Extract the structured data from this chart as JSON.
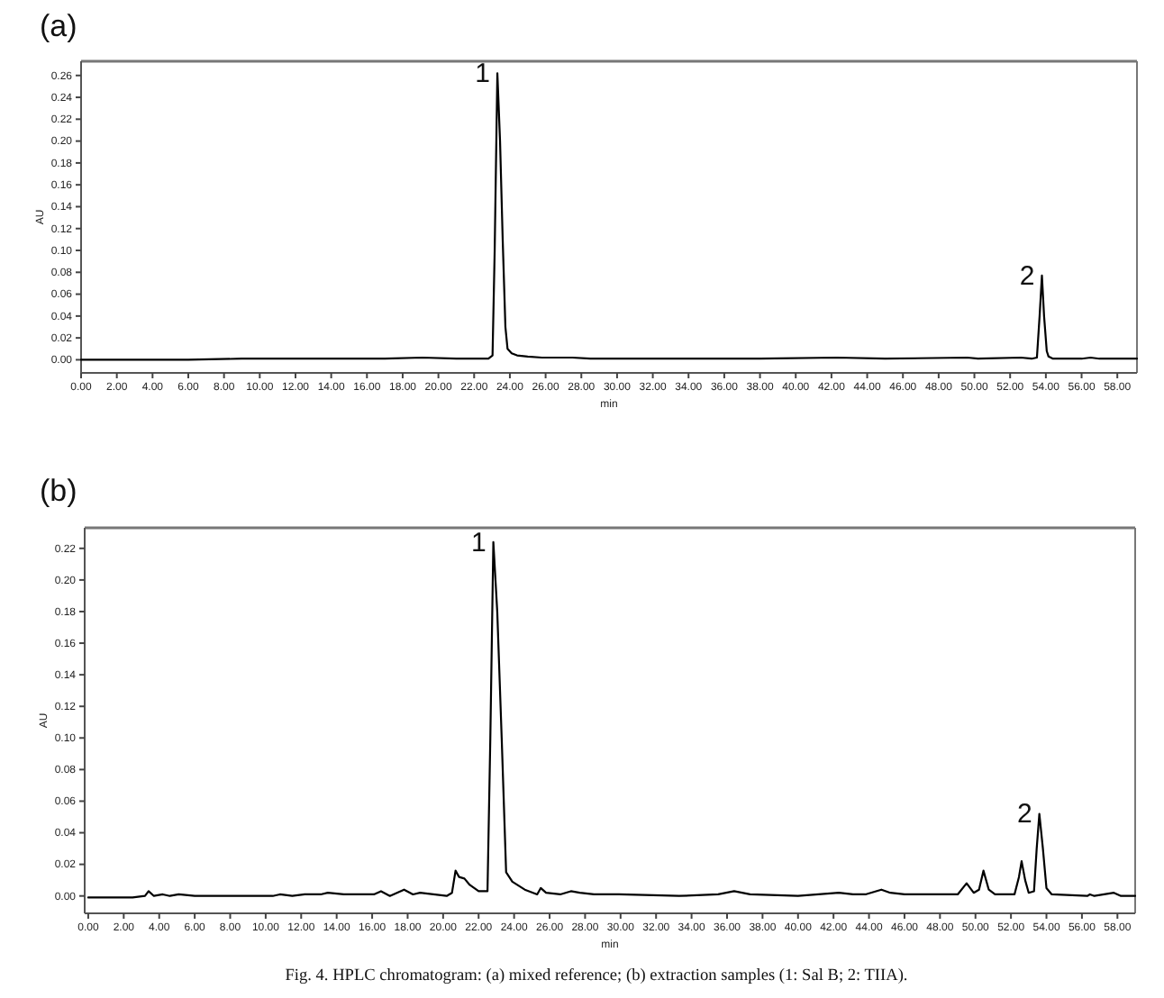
{
  "chart_data": [
    {
      "type": "line",
      "title": "(a)",
      "xlabel": "min",
      "ylabel": "AU",
      "x": [
        0,
        3,
        6,
        9,
        12,
        14,
        17,
        19.1,
        21,
        22.8,
        23.03,
        23.15,
        23.3,
        23.45,
        23.6,
        23.75,
        23.87,
        24.1,
        24.4,
        25,
        25.8,
        27.5,
        28.5,
        30,
        34,
        38,
        42.3,
        45,
        49.6,
        50.2,
        52.6,
        53.2,
        53.5,
        53.65,
        53.78,
        53.9,
        54.05,
        54.15,
        54.4,
        56,
        56.5,
        57,
        59.1
      ],
      "series": [
        {
          "color": "#000000",
          "values": [
            0,
            0,
            0,
            0.001,
            0.001,
            0.001,
            0.001,
            0.002,
            0.001,
            0.001,
            0.004,
            0.1,
            0.262,
            0.2,
            0.109,
            0.03,
            0.01,
            0.006,
            0.004,
            0.003,
            0.002,
            0.002,
            0.001,
            0.001,
            0.001,
            0.001,
            0.002,
            0.001,
            0.002,
            0.001,
            0.002,
            0.001,
            0.002,
            0.04,
            0.077,
            0.04,
            0.008,
            0.003,
            0.001,
            0.001,
            0.002,
            0.001,
            0.001
          ]
        }
      ],
      "xlim": [
        0,
        59.1
      ],
      "ylim": [
        -0.012,
        0.273
      ],
      "xticks": [
        {
          "value": 0,
          "label": "0.00"
        },
        {
          "value": 2,
          "label": "2.00"
        },
        {
          "value": 4,
          "label": "4.00"
        },
        {
          "value": 6,
          "label": "6.00"
        },
        {
          "value": 8,
          "label": "8.00"
        },
        {
          "value": 10,
          "label": "10.00"
        },
        {
          "value": 12,
          "label": "12.00"
        },
        {
          "value": 14,
          "label": "14.00"
        },
        {
          "value": 16,
          "label": "16.00"
        },
        {
          "value": 18,
          "label": "18.00"
        },
        {
          "value": 20,
          "label": "20.00"
        },
        {
          "value": 22,
          "label": "22.00"
        },
        {
          "value": 24,
          "label": "24.00"
        },
        {
          "value": 26,
          "label": "26.00"
        },
        {
          "value": 28,
          "label": "28.00"
        },
        {
          "value": 30,
          "label": "30.00"
        },
        {
          "value": 32,
          "label": "32.00"
        },
        {
          "value": 34,
          "label": "34.00"
        },
        {
          "value": 36,
          "label": "36.00"
        },
        {
          "value": 38,
          "label": "38.00"
        },
        {
          "value": 40,
          "label": "40.00"
        },
        {
          "value": 42,
          "label": "42.00"
        },
        {
          "value": 44,
          "label": "44.00"
        },
        {
          "value": 46,
          "label": "46.00"
        },
        {
          "value": 48,
          "label": "48.00"
        },
        {
          "value": 50,
          "label": "50.00"
        },
        {
          "value": 52,
          "label": "52.00"
        },
        {
          "value": 54,
          "label": "54.00"
        },
        {
          "value": 56,
          "label": "56.00"
        },
        {
          "value": 58,
          "label": "58.00"
        }
      ],
      "yticks": [
        {
          "value": 0,
          "label": "0.00"
        },
        {
          "value": 0.02,
          "label": "0.02"
        },
        {
          "value": 0.04,
          "label": "0.04"
        },
        {
          "value": 0.06,
          "label": "0.06"
        },
        {
          "value": 0.08,
          "label": "0.08"
        },
        {
          "value": 0.1,
          "label": "0.10"
        },
        {
          "value": 0.12,
          "label": "0.12"
        },
        {
          "value": 0.14,
          "label": "0.14"
        },
        {
          "value": 0.16,
          "label": "0.16"
        },
        {
          "value": 0.18,
          "label": "0.18"
        },
        {
          "value": 0.2,
          "label": "0.20"
        },
        {
          "value": 0.22,
          "label": "0.22"
        },
        {
          "value": 0.24,
          "label": "0.24"
        },
        {
          "value": 0.26,
          "label": "0.26"
        }
      ],
      "annotations": [
        {
          "text": "1",
          "x": 23.3,
          "y": 0.262
        },
        {
          "text": "2",
          "x": 53.78,
          "y": 0.077
        }
      ]
    },
    {
      "type": "line",
      "title": "(b)",
      "xlabel": "min",
      "ylabel": "AU",
      "x": [
        0,
        2.5,
        3.2,
        3.4,
        3.7,
        4.2,
        4.6,
        5.1,
        6,
        10.4,
        10.8,
        11.5,
        12.2,
        13.1,
        13.5,
        14.4,
        16.1,
        16.5,
        17,
        17.8,
        18.3,
        18.7,
        20.2,
        20.5,
        20.7,
        20.9,
        21.2,
        21.5,
        22,
        22.5,
        22.66,
        22.83,
        23.05,
        23.3,
        23.55,
        23.9,
        24.6,
        25.3,
        25.5,
        25.8,
        26.6,
        27.2,
        27.7,
        28.5,
        29.9,
        33.3,
        35.5,
        36.4,
        37.3,
        40,
        42.3,
        43.1,
        43.8,
        44.7,
        45.2,
        46,
        49,
        49.5,
        49.9,
        50.2,
        50.45,
        50.75,
        51.1,
        52.2,
        52.45,
        52.6,
        52.8,
        53,
        53.3,
        53.45,
        53.6,
        53.8,
        54,
        54.3,
        56.3,
        56.45,
        56.7,
        57.8,
        58.2,
        59
      ],
      "series": [
        {
          "color": "#000000",
          "values": [
            -0.001,
            -0.001,
            0,
            0.003,
            0,
            0.001,
            0,
            0.001,
            0,
            0,
            0.001,
            0,
            0.001,
            0.001,
            0.002,
            0.001,
            0.001,
            0.003,
            0,
            0.004,
            0.001,
            0.002,
            0,
            0.002,
            0.016,
            0.012,
            0.011,
            0.007,
            0.003,
            0.003,
            0.1,
            0.224,
            0.18,
            0.1,
            0.015,
            0.009,
            0.004,
            0.001,
            0.005,
            0.002,
            0.001,
            0.003,
            0.002,
            0.001,
            0.001,
            0,
            0.001,
            0.003,
            0.001,
            0,
            0.002,
            0.001,
            0.001,
            0.004,
            0.002,
            0.001,
            0.001,
            0.008,
            0.002,
            0.004,
            0.016,
            0.004,
            0.001,
            0.001,
            0.012,
            0.022,
            0.01,
            0.002,
            0.003,
            0.03,
            0.052,
            0.03,
            0.005,
            0.001,
            0,
            0.001,
            0,
            0.002,
            0,
            0
          ]
        }
      ],
      "xlim": [
        -0.2,
        59
      ],
      "ylim": [
        -0.011,
        0.233
      ],
      "xticks": [
        {
          "value": 0,
          "label": "0.00"
        },
        {
          "value": 2,
          "label": "2.00"
        },
        {
          "value": 4,
          "label": "4.00"
        },
        {
          "value": 6,
          "label": "6.00"
        },
        {
          "value": 8,
          "label": "8.00"
        },
        {
          "value": 10,
          "label": "10.00"
        },
        {
          "value": 12,
          "label": "12.00"
        },
        {
          "value": 14,
          "label": "14.00"
        },
        {
          "value": 16,
          "label": "16.00"
        },
        {
          "value": 18,
          "label": "18.00"
        },
        {
          "value": 20,
          "label": "20.00"
        },
        {
          "value": 22,
          "label": "22.00"
        },
        {
          "value": 24,
          "label": "24.00"
        },
        {
          "value": 26,
          "label": "26.00"
        },
        {
          "value": 28,
          "label": "28.00"
        },
        {
          "value": 30,
          "label": "30.00"
        },
        {
          "value": 32,
          "label": "32.00"
        },
        {
          "value": 34,
          "label": "34.00"
        },
        {
          "value": 36,
          "label": "36.00"
        },
        {
          "value": 38,
          "label": "38.00"
        },
        {
          "value": 40,
          "label": "40.00"
        },
        {
          "value": 42,
          "label": "42.00"
        },
        {
          "value": 44,
          "label": "44.00"
        },
        {
          "value": 46,
          "label": "46.00"
        },
        {
          "value": 48,
          "label": "48.00"
        },
        {
          "value": 50,
          "label": "50.00"
        },
        {
          "value": 52,
          "label": "52.00"
        },
        {
          "value": 54,
          "label": "54.00"
        },
        {
          "value": 56,
          "label": "56.00"
        },
        {
          "value": 58,
          "label": "58.00"
        }
      ],
      "yticks": [
        {
          "value": 0,
          "label": "0.00"
        },
        {
          "value": 0.02,
          "label": "0.02"
        },
        {
          "value": 0.04,
          "label": "0.04"
        },
        {
          "value": 0.06,
          "label": "0.06"
        },
        {
          "value": 0.08,
          "label": "0.08"
        },
        {
          "value": 0.1,
          "label": "0.10"
        },
        {
          "value": 0.12,
          "label": "0.12"
        },
        {
          "value": 0.14,
          "label": "0.14"
        },
        {
          "value": 0.16,
          "label": "0.16"
        },
        {
          "value": 0.18,
          "label": "0.18"
        },
        {
          "value": 0.2,
          "label": "0.20"
        },
        {
          "value": 0.22,
          "label": "0.22"
        }
      ],
      "annotations": [
        {
          "text": "1",
          "x": 22.83,
          "y": 0.224
        },
        {
          "text": "2",
          "x": 53.6,
          "y": 0.052
        },
        "Fig. 4. HPLC chromatogram: (a) mixed reference; (b) extraction samples (1: Sal B; 2: TIIA)."
      ]
    }
  ]
}
